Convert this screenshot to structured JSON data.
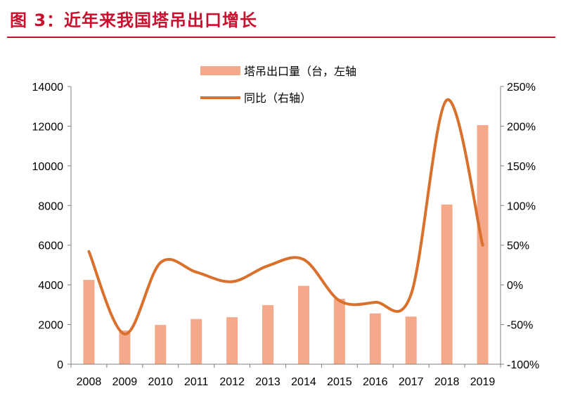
{
  "header": {
    "title": "图 3：近年来我国塔吊出口增长"
  },
  "chart_data": {
    "type": "bar+line",
    "categories": [
      "2008",
      "2009",
      "2010",
      "2011",
      "2012",
      "2013",
      "2014",
      "2015",
      "2016",
      "2017",
      "2018",
      "2019"
    ],
    "series": [
      {
        "name": "塔吊出口量（台，左轴",
        "type": "bar",
        "axis": "left",
        "color": "#f4a98a",
        "values": [
          4250,
          1700,
          1980,
          2280,
          2370,
          2980,
          3950,
          3300,
          2560,
          2400,
          8050,
          12050
        ]
      },
      {
        "name": "同比（右轴）",
        "type": "line",
        "axis": "right",
        "color": "#d9702c",
        "values": [
          42,
          -62,
          28,
          16,
          4,
          24,
          32,
          -20,
          -22,
          -12,
          233,
          50
        ]
      }
    ],
    "yleft": {
      "min": 0,
      "max": 14000,
      "ticks": [
        0,
        2000,
        4000,
        6000,
        8000,
        10000,
        12000,
        14000
      ],
      "tick_labels": [
        "0",
        "2000",
        "4000",
        "6000",
        "8000",
        "10000",
        "12000",
        "14000"
      ]
    },
    "yright": {
      "min": -100,
      "max": 250,
      "ticks": [
        -100,
        -50,
        0,
        50,
        100,
        150,
        200,
        250
      ],
      "tick_labels": [
        "-100%",
        "-50%",
        "0%",
        "50%",
        "100%",
        "150%",
        "200%",
        "250%"
      ]
    },
    "legend_position": "top-center",
    "grid": false
  }
}
